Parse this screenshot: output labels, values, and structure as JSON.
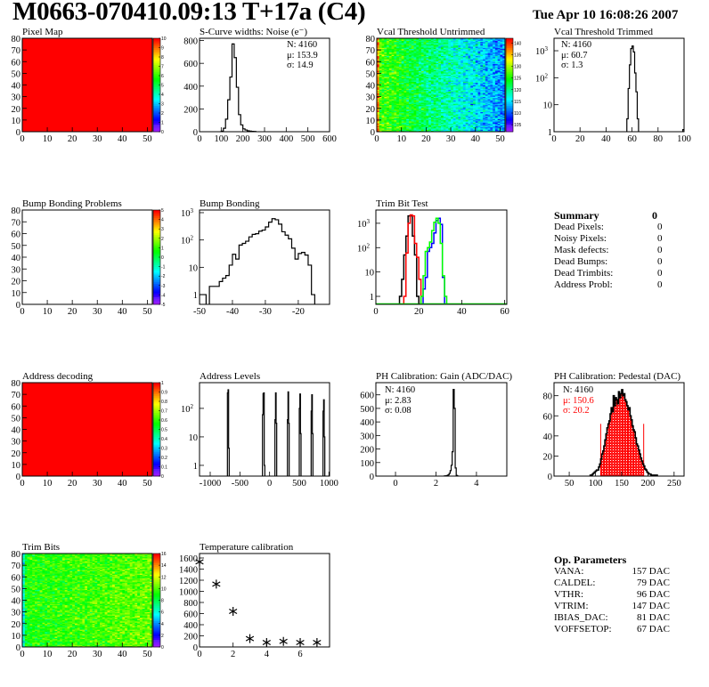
{
  "header": {
    "title": "M0663-070410.09:13 T+17a (C4)",
    "date": "Tue Apr 10 16:08:26 2007"
  },
  "colors": {
    "axis": "#000000",
    "palette": "rainbow purple-to-red",
    "trim_black": "#000000",
    "trim_red": "#ff0000",
    "trim_blue": "#0000ff",
    "trim_green": "#00ff00",
    "pedestal_fill": "#ff0000"
  },
  "summary": {
    "title": "Summary",
    "total": "0",
    "rows": [
      {
        "label": "Dead Pixels:",
        "value": "0"
      },
      {
        "label": "Noisy Pixels:",
        "value": "0"
      },
      {
        "label": "Mask defects:",
        "value": "0"
      },
      {
        "label": "Dead Bumps:",
        "value": "0"
      },
      {
        "label": "Dead Trimbits:",
        "value": "0"
      },
      {
        "label": "Address Probl:",
        "value": "0"
      }
    ]
  },
  "op_parameters": {
    "title": "Op. Parameters",
    "rows": [
      {
        "label": "VANA:",
        "value": "157 DAC"
      },
      {
        "label": "CALDEL:",
        "value": "79 DAC"
      },
      {
        "label": "VTHR:",
        "value": "96 DAC"
      },
      {
        "label": "VTRIM:",
        "value": "147 DAC"
      },
      {
        "label": "IBIAS_DAC:",
        "value": "81 DAC"
      },
      {
        "label": "VOFFSETOP:",
        "value": "67 DAC"
      }
    ]
  },
  "chart_data": [
    {
      "id": "pixel_map",
      "type": "heatmap",
      "title": "Pixel Map",
      "xlim": [
        0,
        52
      ],
      "ylim": [
        0,
        80
      ],
      "xticks": [
        0,
        10,
        20,
        30,
        40,
        50
      ],
      "yticks": [
        0,
        10,
        20,
        30,
        40,
        50,
        60,
        70,
        80
      ],
      "zlim": [
        0,
        10
      ],
      "zticks": [
        0,
        1,
        2,
        3,
        4,
        5,
        6,
        7,
        8,
        9,
        10
      ],
      "uniform_value": 10
    },
    {
      "id": "scurve",
      "type": "bar",
      "title": "S-Curve widths: Noise (e⁻)",
      "xlim": [
        0,
        600
      ],
      "ylim": [
        0,
        820
      ],
      "xticks": [
        0,
        100,
        200,
        300,
        400,
        500,
        600
      ],
      "yticks": [
        0,
        200,
        400,
        600,
        800
      ],
      "stats": {
        "n": "N: 4160",
        "mu": "μ: 153.9",
        "sigma": "σ: 14.9"
      },
      "series": [
        {
          "color": "#000000",
          "x_start": 100,
          "bin_width": 10,
          "values": [
            5,
            30,
            110,
            280,
            480,
            770,
            650,
            390,
            150,
            60,
            25,
            15,
            8,
            5,
            3,
            2
          ]
        }
      ]
    },
    {
      "id": "vcal_untrimmed",
      "type": "heatmap",
      "title": "Vcal Threshold Untrimmed",
      "xlim": [
        0,
        52
      ],
      "ylim": [
        0,
        80
      ],
      "xticks": [
        0,
        10,
        20,
        30,
        40,
        50
      ],
      "yticks": [
        0,
        10,
        20,
        30,
        40,
        50,
        60,
        70,
        80
      ],
      "zlim": [
        102,
        142
      ],
      "zticks": [
        105,
        110,
        115,
        120,
        125,
        130,
        135,
        140
      ],
      "column_mean_first": 127,
      "column_mean_last": 112,
      "spread": 4,
      "edge_column_value": 137
    },
    {
      "id": "vcal_trimmed",
      "type": "bar",
      "title": "Vcal Threshold Trimmed",
      "xlim": [
        0,
        100
      ],
      "ylim": [
        1,
        2900
      ],
      "logy": true,
      "xticks": [
        0,
        20,
        40,
        60,
        80,
        100
      ],
      "yticks": [
        1,
        10,
        100,
        1000
      ],
      "stats": {
        "n": "N: 4160",
        "mu": "μ: 60.7",
        "sigma": "σ:  1.3"
      },
      "series": [
        {
          "color": "#000000",
          "x_start": 56,
          "bin_width": 1,
          "values": [
            3,
            40,
            300,
            1200,
            1500,
            900,
            150,
            30,
            3
          ]
        },
        {
          "color": "#000000",
          "x_start": 99,
          "bin_width": 1,
          "values": [
            1.2
          ]
        }
      ]
    },
    {
      "id": "bump_problems",
      "type": "heatmap",
      "title": "Bump Bonding Problems",
      "xlim": [
        0,
        52
      ],
      "ylim": [
        0,
        80
      ],
      "xticks": [
        0,
        10,
        20,
        30,
        40,
        50
      ],
      "yticks": [
        0,
        10,
        20,
        30,
        40,
        50,
        60,
        70,
        80
      ],
      "zlim": [
        -5,
        5
      ],
      "zticks": [
        -5,
        -4,
        -3,
        -2,
        -1,
        0,
        1,
        2,
        3,
        4,
        5
      ],
      "empty": true
    },
    {
      "id": "bump_bonding",
      "type": "bar",
      "title": "Bump Bonding",
      "xlim": [
        -50,
        -10.5
      ],
      "ylim": [
        0.44,
        1250
      ],
      "logy": true,
      "xticks": [
        -50,
        -40,
        -30,
        -20
      ],
      "yticks": [
        1,
        10,
        100,
        1000
      ],
      "series": [
        {
          "color": "#000000",
          "x_start": -50,
          "bin_width": 1,
          "values": [
            1,
            1,
            0,
            2,
            2,
            2,
            3,
            4,
            5,
            12,
            30,
            20,
            65,
            75,
            90,
            130,
            160,
            170,
            210,
            230,
            300,
            450,
            600,
            550,
            380,
            200,
            150,
            110,
            50,
            20,
            32,
            35,
            28,
            12,
            1
          ]
        }
      ]
    },
    {
      "id": "trim_bit_test",
      "type": "bar",
      "title": "Trim Bit Test",
      "xlim": [
        0,
        61
      ],
      "ylim": [
        0.47,
        3500
      ],
      "logy": true,
      "xticks": [
        0,
        20,
        40,
        60
      ],
      "yticks": [
        1,
        10,
        100,
        1000
      ],
      "series": [
        {
          "color": "#000000",
          "x_start": 11,
          "bin_width": 1,
          "values": [
            1,
            5,
            50,
            300,
            2000,
            2000,
            300,
            50,
            1
          ]
        },
        {
          "color": "#ff0000",
          "x_start": 13,
          "bin_width": 1,
          "values": [
            1,
            60,
            1000,
            2200,
            2000,
            150,
            40,
            5
          ]
        },
        {
          "color": "#0000ff",
          "x_start": 21,
          "bin_width": 1,
          "values": [
            0,
            2,
            6,
            70,
            100,
            150,
            400,
            1300,
            1600,
            900,
            6
          ]
        },
        {
          "color": "#00ff00",
          "x_start": 21,
          "bin_width": 1,
          "values": [
            1,
            7,
            70,
            100,
            170,
            500,
            1100,
            1600,
            1000,
            150,
            7,
            1
          ]
        }
      ]
    },
    {
      "id": "address_decoding",
      "type": "heatmap",
      "title": "Address decoding",
      "xlim": [
        0,
        52
      ],
      "ylim": [
        0,
        80
      ],
      "xticks": [
        0,
        10,
        20,
        30,
        40,
        50
      ],
      "yticks": [
        0,
        10,
        20,
        30,
        40,
        50,
        60,
        70,
        80
      ],
      "zlim": [
        0,
        1
      ],
      "zticks": [
        0,
        0.1,
        0.2,
        0.3,
        0.4,
        0.5,
        0.6,
        0.7,
        0.8,
        0.9,
        1
      ],
      "uniform_value": 1
    },
    {
      "id": "address_levels",
      "type": "bar",
      "title": "Address Levels",
      "xlim": [
        -1180,
        1010
      ],
      "ylim": [
        0.42,
        800
      ],
      "logy": true,
      "xticks": [
        -1000,
        -500,
        0,
        500,
        1000
      ],
      "yticks": [
        1,
        10,
        100
      ],
      "series": [
        {
          "color": "#000000",
          "x_start": -710,
          "bin_width": 10,
          "values": [
            350,
            450,
            4
          ]
        },
        {
          "color": "#000000",
          "x_start": -120,
          "bin_width": 10,
          "values": [
            60,
            330,
            350,
            1
          ]
        },
        {
          "color": "#000000",
          "x_start": 90,
          "bin_width": 10,
          "values": [
            40,
            350,
            30
          ]
        },
        {
          "color": "#000000",
          "x_start": 300,
          "bin_width": 10,
          "values": [
            40,
            380,
            30
          ]
        },
        {
          "color": "#000000",
          "x_start": 500,
          "bin_width": 10,
          "values": [
            100,
            320,
            13
          ]
        },
        {
          "color": "#000000",
          "x_start": 700,
          "bin_width": 10,
          "values": [
            80,
            300,
            13
          ]
        },
        {
          "color": "#000000",
          "x_start": 900,
          "bin_width": 10,
          "values": [
            80,
            200,
            10
          ]
        }
      ]
    },
    {
      "id": "ph_gain",
      "type": "bar",
      "title": "PH Calibration: Gain (ADC/DAC)",
      "xlim": [
        -0.97,
        5.5
      ],
      "ylim": [
        0,
        690
      ],
      "xticks": [
        0,
        2,
        4
      ],
      "yticks": [
        0,
        100,
        200,
        300,
        400,
        500,
        600
      ],
      "stats": {
        "n": "N: 4160",
        "mu": "μ: 2.83",
        "sigma": "σ: 0.08"
      },
      "series": [
        {
          "color": "#000000",
          "x_start": 2.4,
          "bin_width": 0.05,
          "values": [
            1,
            2,
            3,
            5,
            10,
            20,
            40,
            80,
            180,
            640,
            500,
            60,
            5,
            1
          ]
        }
      ]
    },
    {
      "id": "ph_pedestal",
      "type": "bar",
      "title": "PH Calibration: Pedestal (DAC)",
      "xlim": [
        21,
        269
      ],
      "ylim": [
        0,
        93
      ],
      "xticks": [
        50,
        100,
        150,
        200,
        250
      ],
      "yticks": [
        0,
        20,
        40,
        60,
        80
      ],
      "stats": {
        "n": "N: 4160",
        "mu": "μ: 150.6",
        "sigma": "σ: 20.2"
      },
      "fill_range": [
        110,
        192
      ],
      "series": [
        {
          "color": "#000000",
          "x_start": 90,
          "bin_width": 2,
          "values": [
            1,
            1,
            2,
            3,
            4,
            5,
            6,
            6,
            9,
            12,
            17,
            22,
            25,
            30,
            36,
            42,
            48,
            52,
            55,
            62,
            68,
            64,
            80,
            70,
            78,
            76,
            72,
            84,
            78,
            82,
            86,
            80,
            82,
            76,
            74,
            70,
            66,
            68,
            60,
            56,
            50,
            46,
            44,
            38,
            32,
            30,
            26,
            22,
            18,
            15,
            12,
            10,
            7,
            6,
            4,
            3,
            2,
            2,
            1,
            1,
            1,
            0,
            1,
            1
          ]
        }
      ]
    },
    {
      "id": "trim_bits",
      "type": "heatmap",
      "title": "Trim Bits",
      "xlim": [
        0,
        52
      ],
      "ylim": [
        0,
        80
      ],
      "xticks": [
        0,
        10,
        20,
        30,
        40,
        50
      ],
      "yticks": [
        0,
        10,
        20,
        30,
        40,
        50,
        60,
        70,
        80
      ],
      "zlim": [
        0,
        16
      ],
      "zticks": [
        0,
        2,
        4,
        6,
        8,
        10,
        12,
        14,
        16
      ],
      "column_mean_first": 9.2,
      "column_mean_last": 10.4,
      "spread": 1.3,
      "edge_column_value": 6
    },
    {
      "id": "temperature",
      "type": "scatter",
      "title": "Temperature calibration",
      "xlim": [
        0,
        7.75
      ],
      "ylim": [
        0,
        1680
      ],
      "xticks": [
        0,
        2,
        4,
        6
      ],
      "yticks": [
        0,
        200,
        400,
        600,
        800,
        1000,
        1200,
        1400,
        1600
      ],
      "x": [
        0,
        1,
        2,
        3,
        4,
        5,
        6,
        7
      ],
      "y": [
        1530,
        1130,
        640,
        150,
        80,
        100,
        80,
        80
      ]
    }
  ]
}
